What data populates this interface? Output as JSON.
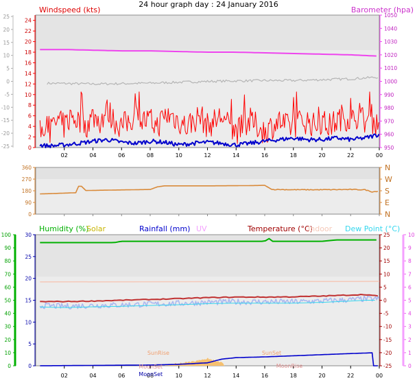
{
  "title": "24 hour graph day : 24 January 2016",
  "colors": {
    "wind": "#ff0000",
    "windAvg": "#0000cc",
    "baro": "#ee44ee",
    "gray": "#b4b4b4",
    "dir": "#d98a3a",
    "humidity": "#00b000",
    "solar": "#c8b400",
    "rain": "#0000cc",
    "uv": "#f49fff",
    "temp": "#a00000",
    "indoor": "#f5c8b8",
    "dew": "#35d7ee",
    "sunfill": "#f6c070"
  },
  "chart_data": [
    {
      "type": "line",
      "legend": {
        "left": "Windspeed (kts)",
        "right": "Barometer (hpa)"
      },
      "x_ticks": [
        "02",
        "04",
        "06",
        "08",
        "10",
        "12",
        "14",
        "16",
        "18",
        "20",
        "22",
        "00"
      ],
      "y_left_ticks": [
        "24",
        "22",
        "20",
        "18",
        "16",
        "14",
        "12",
        "10",
        "8",
        "6",
        "4",
        "2",
        "0"
      ],
      "y_outer_ticks": [
        "25",
        "20",
        "15",
        "10",
        "5",
        "0",
        "-5",
        "-10",
        "-15",
        "-20",
        "-25"
      ],
      "y_right_ticks": [
        "1050",
        "1040",
        "1030",
        "1020",
        "1010",
        "1000",
        "990",
        "980",
        "970",
        "960",
        "950"
      ],
      "ylim_wind": [
        0,
        25
      ],
      "ylim_baro": [
        950,
        1050
      ],
      "series": [
        {
          "name": "Windspeed (kts)",
          "key": "gust",
          "x": [
            0,
            0.5,
            1,
            1.5,
            2,
            2.5,
            3,
            3.5,
            4,
            4.5,
            5,
            5.5,
            6,
            6.5,
            7,
            7.5,
            8,
            8.5,
            9,
            9.5,
            10,
            10.5,
            11,
            11.5,
            12,
            12.5,
            13,
            13.5,
            14,
            14.5,
            15,
            15.5,
            16,
            16.5,
            17,
            17.5,
            18,
            18.5,
            19,
            19.5,
            20,
            20.5,
            21,
            21.5,
            22,
            22.5,
            23,
            23.5,
            24
          ],
          "values": [
            3,
            4,
            3,
            5,
            4,
            6,
            5,
            4,
            6,
            5,
            7,
            5,
            4,
            5,
            6,
            5,
            5,
            4,
            6,
            6,
            5,
            4,
            5,
            6,
            4,
            5,
            6,
            4,
            3,
            4,
            5,
            4,
            3,
            4,
            5,
            4,
            4,
            5,
            5,
            4,
            5,
            4,
            5,
            6,
            5,
            6,
            5,
            5,
            4
          ]
        },
        {
          "name": "avg",
          "key": "avg",
          "x": [
            0,
            1,
            2,
            3,
            4,
            5,
            6,
            7,
            8,
            9,
            10,
            11,
            12,
            13,
            14,
            15,
            16,
            17,
            18,
            19,
            20,
            21,
            22,
            23,
            24
          ],
          "values": [
            0.5,
            0.3,
            0.5,
            0.8,
            1.2,
            1.5,
            1,
            0.8,
            1.2,
            1,
            0.5,
            0.8,
            1,
            0.8,
            0.5,
            0.8,
            1.2,
            1.5,
            1.8,
            1.5,
            1.5,
            1.8,
            1.5,
            1.8,
            2.5
          ]
        },
        {
          "name": "Barometer (hpa)",
          "key": "baro",
          "x": [
            0,
            2,
            4,
            6,
            8,
            10,
            12,
            14,
            16,
            18,
            20,
            22,
            23,
            24
          ],
          "values": [
            1024,
            1024,
            1023.5,
            1023,
            1023,
            1022.5,
            1022,
            1022,
            1021.5,
            1021,
            1020.5,
            1020,
            1019.5,
            1019
          ]
        },
        {
          "name": "gray",
          "key": "gray",
          "x": [
            0,
            2,
            4,
            6,
            8,
            10,
            12,
            14,
            16,
            18,
            20,
            22,
            24
          ],
          "values": [
            0.5,
            0.3,
            0,
            0.2,
            0.5,
            1,
            1.5,
            1.8,
            2,
            2,
            2.5,
            3,
            4
          ]
        }
      ]
    },
    {
      "type": "line",
      "x_ticks": [
        "02",
        "04",
        "06",
        "08",
        "10",
        "12",
        "14",
        "16",
        "18",
        "20",
        "22",
        "00"
      ],
      "y_left_ticks": [
        "360",
        "270",
        "180",
        "90",
        "0"
      ],
      "y_right_ticks": [
        "N",
        "W",
        "S",
        "E",
        "N"
      ],
      "ylim": [
        0,
        360
      ],
      "series": [
        {
          "name": "direction",
          "x": [
            0,
            1,
            2,
            2.8,
            3,
            3.2,
            3.5,
            5,
            8,
            8.5,
            9,
            12,
            15,
            16,
            16.5,
            17,
            18,
            20,
            22,
            23,
            23.5,
            24
          ],
          "values": [
            155,
            158,
            162,
            165,
            215,
            215,
            182,
            185,
            190,
            210,
            218,
            218,
            220,
            222,
            190,
            190,
            188,
            188,
            190,
            188,
            172,
            178
          ]
        }
      ]
    },
    {
      "type": "line",
      "legend": [
        "Humidity (%)",
        "Solar",
        "Rainfall (mm)",
        "UV",
        "Temperature (°C)",
        "Indoor",
        "Dew Point (°C)"
      ],
      "x_ticks": [
        "02",
        "04",
        "06",
        "08",
        "10",
        "12",
        "14",
        "16",
        "18",
        "20",
        "22",
        "00"
      ],
      "y_left_ticks": [
        "100",
        "90",
        "80",
        "70",
        "60",
        "50",
        "40",
        "30",
        "20",
        "10",
        "0"
      ],
      "y_rain_ticks": [
        "30",
        "25",
        "20",
        "15",
        "10",
        "5",
        "0"
      ],
      "y_temp_ticks": [
        "25",
        "20",
        "15",
        "10",
        "5",
        "0",
        "-5",
        "-10",
        "-15",
        "-20",
        "-25"
      ],
      "y_uv_ticks": [
        "10",
        "9",
        "8",
        "7",
        "6",
        "5",
        "4",
        "3",
        "2",
        "1",
        "0"
      ],
      "ylim_humidity": [
        0,
        100
      ],
      "ylim_temp": [
        -25,
        25
      ],
      "annotations": [
        "SunRise",
        "SunSet",
        "MoonSet",
        "MoonRise",
        "MoonSet"
      ],
      "series": [
        {
          "name": "Humidity (%)",
          "key": "hum",
          "x": [
            0,
            4,
            5.5,
            6,
            8,
            10,
            12,
            16,
            16.3,
            16.5,
            18,
            20,
            21,
            22,
            24
          ],
          "values": [
            94,
            94,
            94,
            95,
            95,
            95,
            95,
            95,
            97,
            95,
            95,
            95,
            96,
            96,
            96
          ]
        },
        {
          "name": "Temperature (°C)",
          "key": "temp",
          "x": [
            0,
            2,
            4,
            6,
            8,
            10,
            12,
            14,
            16,
            18,
            20,
            22,
            23,
            24
          ],
          "values": [
            -0.5,
            -0.5,
            -0.3,
            0,
            0.3,
            0.6,
            1,
            1.2,
            1.2,
            1.3,
            1.6,
            2,
            2.2,
            1.5
          ]
        },
        {
          "name": "Dew Point (°C)",
          "key": "dew",
          "x": [
            0,
            2,
            4,
            6,
            8,
            10,
            12,
            14,
            16,
            18,
            20,
            22,
            23,
            24
          ],
          "values": [
            -2,
            -2.3,
            -2,
            -1.8,
            -1.5,
            -1.2,
            -0.8,
            -0.6,
            -0.6,
            -0.6,
            -0.3,
            0.2,
            0.5,
            0.5
          ]
        },
        {
          "name": "Indoor",
          "key": "indoor",
          "x": [
            0,
            24
          ],
          "values": [
            7,
            7.2
          ]
        },
        {
          "name": "Rainfall (mm)",
          "key": "rain",
          "x": [
            0,
            8,
            10,
            12,
            13,
            14,
            16,
            18,
            20,
            22,
            23.5,
            23.6,
            24
          ],
          "values": [
            0,
            0.2,
            0.4,
            0.8,
            1.8,
            2.2,
            2.4,
            2.7,
            3,
            3.3,
            3.5,
            0,
            0
          ]
        },
        {
          "name": "Solar",
          "key": "solar",
          "x": [
            9,
            10,
            11,
            12,
            13,
            13.2
          ],
          "values": [
            0,
            1.5,
            3,
            5,
            2,
            0
          ]
        }
      ]
    }
  ]
}
